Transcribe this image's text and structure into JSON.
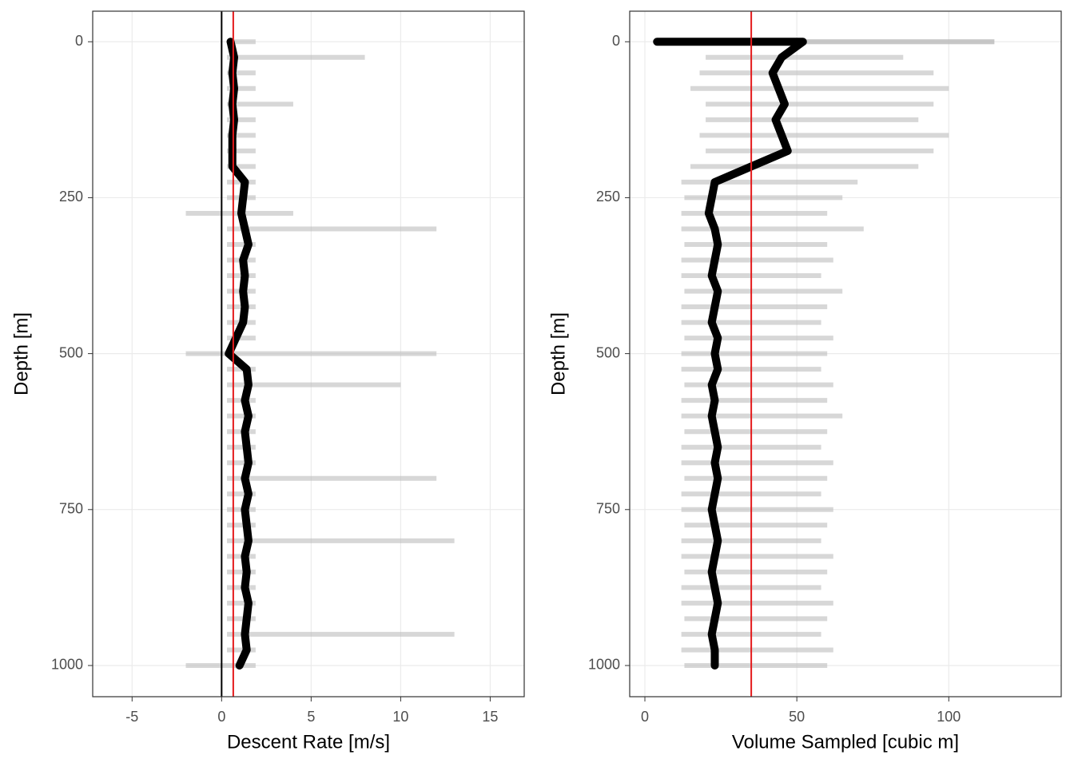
{
  "chart_data": [
    {
      "type": "profile",
      "xlabel": "Descent Rate [m/s]",
      "ylabel": "Depth [m]",
      "xlim": [
        -7.2,
        16.9
      ],
      "xticks": [
        -5,
        0,
        5,
        10,
        15
      ],
      "ylim": [
        -49,
        1050
      ],
      "yticks": [
        0,
        250,
        500,
        750,
        1000
      ],
      "y_reversed": true,
      "grid": true,
      "zero_line": true,
      "reference_x": 0.65,
      "reference_color": "#e41a1c",
      "depth": [
        0,
        25,
        50,
        75,
        100,
        125,
        150,
        175,
        200,
        225,
        250,
        275,
        300,
        325,
        350,
        375,
        400,
        425,
        450,
        475,
        500,
        525,
        550,
        575,
        600,
        625,
        650,
        675,
        700,
        725,
        750,
        775,
        800,
        825,
        850,
        875,
        900,
        925,
        950,
        975,
        1000
      ],
      "range_color": "#bdbdbd",
      "range_low": [
        0.3,
        0.3,
        0.3,
        0.3,
        0.3,
        0.3,
        0.3,
        0.3,
        0.3,
        0.3,
        0.3,
        -2,
        0.3,
        0.3,
        0.3,
        0.3,
        0.3,
        0.3,
        0.3,
        0.3,
        -2,
        0.3,
        0.3,
        0.3,
        0.3,
        0.3,
        0.3,
        0.3,
        0.3,
        0.3,
        0.3,
        0.3,
        0.3,
        0.3,
        0.3,
        0.3,
        0.3,
        0.3,
        0.3,
        0.3,
        -2
      ],
      "range_high": [
        1.9,
        8,
        1.9,
        1.9,
        4,
        1.9,
        1.9,
        1.9,
        1.9,
        1.9,
        1.9,
        4,
        12,
        1.9,
        1.9,
        1.9,
        1.9,
        1.9,
        1.9,
        1.9,
        12,
        1.9,
        10,
        1.9,
        1.9,
        1.9,
        1.9,
        1.9,
        12,
        1.9,
        1.9,
        1.9,
        13,
        1.9,
        1.9,
        1.9,
        1.9,
        1.9,
        13,
        1.9,
        1.9
      ],
      "series": [
        {
          "color": "#000000",
          "values": [
            0.5,
            0.7,
            0.6,
            0.7,
            0.6,
            0.7,
            0.6,
            0.6,
            0.6,
            1.3,
            1.2,
            1.1,
            1.3,
            1.5,
            1.2,
            1.3,
            1.2,
            1.3,
            1.2,
            0.8,
            0.4,
            1.4,
            1.5,
            1.3,
            1.5,
            1.3,
            1.4,
            1.5,
            1.3,
            1.5,
            1.3,
            1.4,
            1.5,
            1.3,
            1.4,
            1.3,
            1.5,
            1.4,
            1.3,
            1.4,
            1.0
          ]
        }
      ]
    },
    {
      "type": "profile",
      "xlabel": "Volume Sampled [cubic m]",
      "ylabel": "Depth [m]",
      "xlim": [
        -5,
        137
      ],
      "xticks": [
        0,
        50,
        100
      ],
      "ylim": [
        -49,
        1050
      ],
      "yticks": [
        0,
        250,
        500,
        750,
        1000
      ],
      "y_reversed": true,
      "grid": true,
      "zero_line": false,
      "reference_x": 35,
      "reference_color": "#e41a1c",
      "depth": [
        0,
        0,
        25,
        50,
        75,
        100,
        125,
        150,
        175,
        200,
        225,
        250,
        275,
        300,
        325,
        350,
        375,
        400,
        425,
        450,
        475,
        500,
        525,
        550,
        575,
        600,
        625,
        650,
        675,
        700,
        725,
        750,
        775,
        800,
        825,
        850,
        875,
        900,
        925,
        950,
        975,
        1000
      ],
      "range_color": "#bdbdbd",
      "range_low": [
        10,
        10,
        20,
        18,
        15,
        20,
        20,
        18,
        20,
        15,
        12,
        13,
        12,
        12,
        13,
        12,
        12,
        13,
        12,
        12,
        13,
        12,
        12,
        13,
        12,
        12,
        13,
        12,
        12,
        13,
        12,
        12,
        13,
        12,
        12,
        13,
        12,
        12,
        13,
        12,
        12,
        13
      ],
      "range_high": [
        115,
        115,
        85,
        95,
        100,
        95,
        90,
        100,
        95,
        90,
        70,
        65,
        60,
        72,
        60,
        62,
        58,
        65,
        60,
        58,
        62,
        60,
        58,
        62,
        60,
        65,
        60,
        58,
        62,
        60,
        58,
        62,
        60,
        58,
        62,
        60,
        58,
        62,
        60,
        58,
        62,
        60
      ],
      "series": [
        {
          "color": "#000000",
          "values": [
            4,
            52,
            45,
            42,
            44,
            46,
            43,
            45,
            47,
            35,
            23,
            22,
            21,
            23,
            24,
            23,
            22,
            24,
            23,
            22,
            24,
            23,
            24,
            22,
            23,
            22,
            23,
            24,
            23,
            24,
            23,
            22,
            23,
            24,
            23,
            22,
            23,
            24,
            23,
            22,
            23,
            23
          ]
        }
      ]
    }
  ]
}
